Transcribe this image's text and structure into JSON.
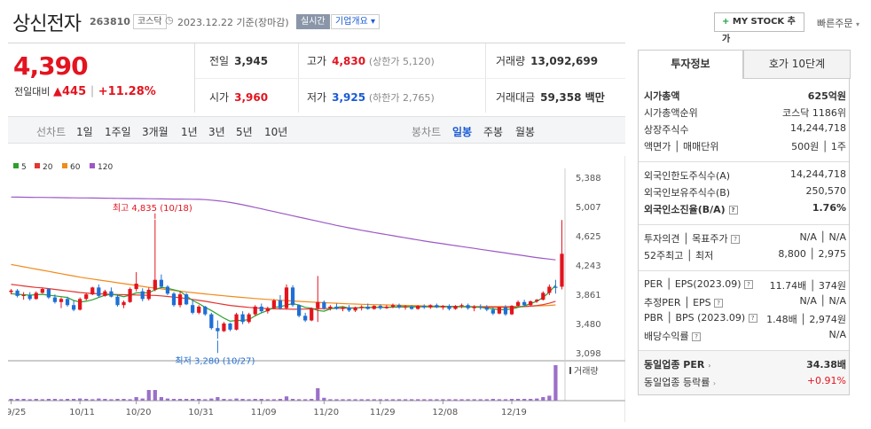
{
  "header": {
    "company_name": "상신전자",
    "code": "263810",
    "market_badge": "코스닥",
    "asof": "2023.12.22 기준(장마감)",
    "realtime_badge": "실시간",
    "company_overview_btn": "기업개요 ▾",
    "mystock_btn": "MY STOCK 추가",
    "mystock_plus": "+",
    "quick_order": "빠른주문"
  },
  "price": {
    "current": "4,390",
    "vs_prev_label": "전일대비",
    "change_arrow": "▲",
    "change": "445",
    "change_pct": "+11.28%"
  },
  "quote": {
    "prev_label": "전일",
    "prev": "3,945",
    "high_label": "고가",
    "high": "4,830",
    "upper_limit": "(상한가 5,120)",
    "volume_label": "거래량",
    "volume": "13,092,699",
    "open_label": "시가",
    "open": "3,960",
    "low_label": "저가",
    "low": "3,925",
    "lower_limit": "(하한가 2,765)",
    "amount_label": "거래대금",
    "amount": "59,358 백만"
  },
  "period_bar": {
    "line_label": "선차트",
    "line_periods": [
      "1일",
      "1주일",
      "3개월",
      "1년",
      "3년",
      "5년",
      "10년"
    ],
    "candle_label": "봉차트",
    "candle_periods": [
      "일봉",
      "주봉",
      "월봉"
    ],
    "candle_selected": "일봉"
  },
  "colors": {
    "ma5": "#2ca02c",
    "ma20": "#e2362f",
    "ma60": "#f28a1b",
    "ma120": "#9b59c5",
    "up": "#e3141f",
    "down": "#1f6fd6",
    "volume": "#9b6fc9"
  },
  "chart_data": {
    "type": "candlestick",
    "legend": [
      {
        "name": "5",
        "color": "#2ca02c"
      },
      {
        "name": "20",
        "color": "#e2362f"
      },
      {
        "name": "60",
        "color": "#f28a1b"
      },
      {
        "name": "120",
        "color": "#9b59c5"
      }
    ],
    "y_ticks": [
      "5,388",
      "5,007",
      "4,625",
      "4,243",
      "3,861",
      "3,480",
      "3,098"
    ],
    "ylim": [
      3098,
      5388
    ],
    "x_ticks": [
      "09/25",
      "10/11",
      "10/20",
      "10/31",
      "11/09",
      "11/20",
      "11/29",
      "12/08",
      "12/19"
    ],
    "high_annotation": "최고 4,835 (10/18)",
    "low_annotation": "최저 3,280 (10/27)",
    "volume_label": "거래량",
    "candles": [
      [
        3890,
        3930,
        3860,
        3910
      ],
      [
        3910,
        3930,
        3820,
        3840
      ],
      [
        3840,
        3890,
        3790,
        3850
      ],
      [
        3850,
        3890,
        3780,
        3800
      ],
      [
        3800,
        3900,
        3790,
        3880
      ],
      [
        3880,
        3950,
        3870,
        3930
      ],
      [
        3930,
        3940,
        3800,
        3820
      ],
      [
        3820,
        3860,
        3740,
        3760
      ],
      [
        3760,
        3820,
        3680,
        3800
      ],
      [
        3800,
        3830,
        3700,
        3720
      ],
      [
        3720,
        3780,
        3640,
        3660
      ],
      [
        3660,
        3820,
        3650,
        3800
      ],
      [
        3800,
        3880,
        3780,
        3860
      ],
      [
        3860,
        3960,
        3850,
        3950
      ],
      [
        3950,
        3990,
        3820,
        3840
      ],
      [
        3840,
        3920,
        3830,
        3900
      ],
      [
        3900,
        3950,
        3820,
        3830
      ],
      [
        3830,
        3860,
        3700,
        3720
      ],
      [
        3720,
        3780,
        3680,
        3760
      ],
      [
        3760,
        3950,
        3750,
        3930
      ],
      [
        3930,
        4150,
        3900,
        4000
      ],
      [
        3900,
        3940,
        3770,
        3800
      ],
      [
        3800,
        3950,
        3780,
        3920
      ],
      [
        3920,
        4835,
        3900,
        4050
      ],
      [
        4050,
        4120,
        3940,
        3960
      ],
      [
        3960,
        3980,
        3850,
        3870
      ],
      [
        3870,
        3890,
        3700,
        3720
      ],
      [
        3720,
        3900,
        3690,
        3860
      ],
      [
        3860,
        3880,
        3720,
        3730
      ],
      [
        3720,
        3790,
        3600,
        3620
      ],
      [
        3620,
        3720,
        3600,
        3700
      ],
      [
        3700,
        3710,
        3580,
        3600
      ],
      [
        3600,
        3620,
        3400,
        3420
      ],
      [
        3420,
        3520,
        3280,
        3380
      ],
      [
        3380,
        3500,
        3370,
        3480
      ],
      [
        3480,
        3490,
        3380,
        3400
      ],
      [
        3400,
        3620,
        3390,
        3600
      ],
      [
        3600,
        3640,
        3470,
        3500
      ],
      [
        3500,
        3620,
        3480,
        3600
      ],
      [
        3600,
        3720,
        3580,
        3700
      ],
      [
        3700,
        3740,
        3620,
        3640
      ],
      [
        3640,
        3700,
        3610,
        3680
      ],
      [
        3680,
        3800,
        3670,
        3780
      ],
      [
        3780,
        3850,
        3660,
        3680
      ],
      [
        3680,
        3990,
        3660,
        3950
      ],
      [
        3950,
        3980,
        3700,
        3720
      ],
      [
        3720,
        3730,
        3560,
        3580
      ],
      [
        3580,
        3620,
        3500,
        3520
      ],
      [
        3520,
        3690,
        3510,
        3680
      ],
      [
        3680,
        4100,
        3500,
        3760
      ],
      [
        3760,
        3780,
        3660,
        3680
      ],
      [
        3680,
        3720,
        3650,
        3700
      ],
      [
        3700,
        3740,
        3660,
        3670
      ],
      [
        3670,
        3700,
        3640,
        3690
      ],
      [
        3690,
        3720,
        3630,
        3650
      ],
      [
        3650,
        3700,
        3630,
        3690
      ],
      [
        3690,
        3720,
        3650,
        3700
      ],
      [
        3700,
        3740,
        3660,
        3670
      ],
      [
        3670,
        3720,
        3660,
        3710
      ],
      [
        3710,
        3730,
        3660,
        3680
      ],
      [
        3680,
        3720,
        3670,
        3700
      ],
      [
        3700,
        3740,
        3680,
        3720
      ],
      [
        3720,
        3740,
        3670,
        3690
      ],
      [
        3690,
        3720,
        3660,
        3700
      ],
      [
        3700,
        3720,
        3660,
        3670
      ],
      [
        3670,
        3720,
        3660,
        3710
      ],
      [
        3710,
        3730,
        3670,
        3690
      ],
      [
        3690,
        3730,
        3670,
        3720
      ],
      [
        3720,
        3740,
        3680,
        3690
      ],
      [
        3690,
        3720,
        3660,
        3710
      ],
      [
        3710,
        3730,
        3650,
        3670
      ],
      [
        3670,
        3720,
        3660,
        3710
      ],
      [
        3710,
        3740,
        3680,
        3720
      ],
      [
        3720,
        3740,
        3660,
        3680
      ],
      [
        3680,
        3720,
        3640,
        3700
      ],
      [
        3700,
        3730,
        3660,
        3690
      ],
      [
        3690,
        3720,
        3640,
        3660
      ],
      [
        3660,
        3690,
        3590,
        3610
      ],
      [
        3610,
        3700,
        3600,
        3690
      ],
      [
        3690,
        3720,
        3580,
        3600
      ],
      [
        3600,
        3720,
        3590,
        3710
      ],
      [
        3710,
        3780,
        3700,
        3760
      ],
      [
        3760,
        3790,
        3700,
        3720
      ],
      [
        3720,
        3780,
        3710,
        3770
      ],
      [
        3770,
        3800,
        3750,
        3790
      ],
      [
        3790,
        3900,
        3780,
        3880
      ],
      [
        3880,
        3990,
        3850,
        3960
      ],
      [
        3960,
        4050,
        3870,
        3945
      ],
      [
        3960,
        4830,
        3925,
        4390
      ]
    ],
    "ma5": [
      3870,
      3860,
      3855,
      3850,
      3855,
      3860,
      3850,
      3840,
      3830,
      3820,
      3780,
      3760,
      3770,
      3790,
      3820,
      3850,
      3860,
      3850,
      3830,
      3850,
      3880,
      3880,
      3880,
      3920,
      3950,
      3940,
      3920,
      3900,
      3840,
      3780,
      3740,
      3690,
      3650,
      3600,
      3550,
      3510,
      3520,
      3520,
      3530,
      3580,
      3620,
      3650,
      3690,
      3700,
      3720,
      3740,
      3720,
      3690,
      3680,
      3650,
      3640,
      3670,
      3690,
      3700,
      3680,
      3680,
      3690,
      3690,
      3690,
      3690,
      3690,
      3695,
      3700,
      3700,
      3700,
      3700,
      3700,
      3700,
      3700,
      3700,
      3700,
      3700,
      3700,
      3700,
      3695,
      3690,
      3680,
      3670,
      3660,
      3660,
      3670,
      3690,
      3710,
      3740,
      3770,
      3820,
      3890,
      3980
    ],
    "ma20": [
      3990,
      3980,
      3970,
      3960,
      3950,
      3945,
      3935,
      3925,
      3915,
      3905,
      3895,
      3885,
      3878,
      3872,
      3868,
      3864,
      3860,
      3858,
      3856,
      3854,
      3852,
      3850,
      3848,
      3846,
      3840,
      3832,
      3824,
      3816,
      3806,
      3794,
      3782,
      3770,
      3756,
      3742,
      3728,
      3716,
      3706,
      3698,
      3690,
      3684,
      3678,
      3674,
      3672,
      3670,
      3668,
      3666,
      3666,
      3668,
      3670,
      3672,
      3674,
      3676,
      3678,
      3680,
      3682,
      3684,
      3686,
      3688,
      3690,
      3692,
      3693,
      3694,
      3695,
      3696,
      3697,
      3698,
      3698,
      3698,
      3698,
      3698,
      3698,
      3698,
      3698,
      3698,
      3697,
      3696,
      3695,
      3694,
      3693,
      3693,
      3694,
      3696,
      3700,
      3706,
      3714,
      3726,
      3744,
      3770
    ],
    "ma60": [
      4250,
      4235,
      4220,
      4205,
      4190,
      4175,
      4160,
      4145,
      4130,
      4115,
      4100,
      4085,
      4072,
      4060,
      4048,
      4036,
      4024,
      4012,
      4000,
      3988,
      3976,
      3964,
      3952,
      3942,
      3932,
      3922,
      3912,
      3902,
      3892,
      3883,
      3874,
      3866,
      3858,
      3850,
      3842,
      3834,
      3827,
      3820,
      3813,
      3806,
      3800,
      3794,
      3789,
      3784,
      3779,
      3774,
      3769,
      3764,
      3760,
      3756,
      3752,
      3748,
      3744,
      3740,
      3737,
      3734,
      3731,
      3728,
      3726,
      3724,
      3722,
      3720,
      3718,
      3716,
      3714,
      3712,
      3710,
      3708,
      3706,
      3705,
      3704,
      3703,
      3702,
      3701,
      3700,
      3700,
      3700,
      3700,
      3700,
      3700,
      3701,
      3702,
      3704,
      3706,
      3709,
      3712,
      3716,
      3722
    ],
    "ma120": [
      5130,
      5129,
      5128,
      5127,
      5126,
      5125,
      5124,
      5123,
      5122,
      5121,
      5120,
      5119,
      5118,
      5117,
      5116,
      5115,
      5114,
      5113,
      5112,
      5111,
      5110,
      5109,
      5108,
      5107,
      5106,
      5105,
      5104,
      5103,
      5102,
      5101,
      5100,
      5096,
      5090,
      5082,
      5072,
      5060,
      5046,
      5030,
      5012,
      4994,
      4976,
      4958,
      4940,
      4922,
      4904,
      4886,
      4868,
      4850,
      4832,
      4814,
      4796,
      4778,
      4760,
      4744,
      4728,
      4712,
      4696,
      4682,
      4668,
      4654,
      4640,
      4626,
      4612,
      4598,
      4584,
      4570,
      4556,
      4544,
      4532,
      4520,
      4508,
      4496,
      4484,
      4472,
      4460,
      4448,
      4436,
      4424,
      4412,
      4400,
      4388,
      4376,
      4364,
      4352,
      4340,
      4330,
      4320,
      4310
    ],
    "volume": [
      0.05,
      0.05,
      0.05,
      0.04,
      0.05,
      0.04,
      0.05,
      0.05,
      0.04,
      0.05,
      0.05,
      0.06,
      0.05,
      0.04,
      0.06,
      0.05,
      0.04,
      0.05,
      0.05,
      0.04,
      0.1,
      0.06,
      0.3,
      0.3,
      0.1,
      0.06,
      0.05,
      0.05,
      0.05,
      0.05,
      0.05,
      0.04,
      0.06,
      0.1,
      0.05,
      0.04,
      0.06,
      0.05,
      0.04,
      0.05,
      0.05,
      0.04,
      0.04,
      0.05,
      0.12,
      0.05,
      0.04,
      0.04,
      0.05,
      0.35,
      0.08,
      0.04,
      0.04,
      0.04,
      0.04,
      0.04,
      0.04,
      0.04,
      0.04,
      0.04,
      0.04,
      0.04,
      0.04,
      0.04,
      0.04,
      0.04,
      0.04,
      0.04,
      0.04,
      0.04,
      0.04,
      0.04,
      0.04,
      0.04,
      0.04,
      0.04,
      0.04,
      0.05,
      0.04,
      0.04,
      0.05,
      0.05,
      0.05,
      0.05,
      0.06,
      0.1,
      0.14,
      1.0
    ]
  },
  "right_panel": {
    "tab_info": "투자정보",
    "tab_orderbook": "호가 10단계",
    "rows_a": [
      {
        "label": "시가총액",
        "value": "625억원"
      },
      {
        "label": "시가총액순위",
        "value": "코스닥 1186위"
      },
      {
        "label": "상장주식수",
        "value": "14,244,718"
      },
      {
        "label": "액면가 │ 매매단위",
        "value": "500원 │ 1주"
      }
    ],
    "rows_b": [
      {
        "label": "외국인한도주식수(A)",
        "value": "14,244,718"
      },
      {
        "label": "외국인보유주식수(B)",
        "value": "250,570"
      },
      {
        "label": "외국인소진율(B/A)",
        "value": "1.76%"
      }
    ],
    "rows_c": [
      {
        "label": "투자의견 │ 목표주가",
        "value": "N/A │ N/A"
      },
      {
        "label": "52주최고 │ 최저",
        "value": "8,800 │ 2,975"
      }
    ],
    "rows_d": [
      {
        "label": "PER │ EPS(2023.09)",
        "value": "11.74배 │ 374원"
      },
      {
        "label": "추정PER │ EPS",
        "value": "N/A │ N/A"
      },
      {
        "label": "PBR │ BPS (2023.09)",
        "value": "1.48배 │ 2,974원"
      },
      {
        "label": "배당수익률",
        "value": "N/A"
      }
    ],
    "rows_e": [
      {
        "label": "동일업종 PER",
        "value": "34.38배"
      },
      {
        "label": "동일업종 등락률",
        "value": "+0.91%"
      }
    ]
  }
}
